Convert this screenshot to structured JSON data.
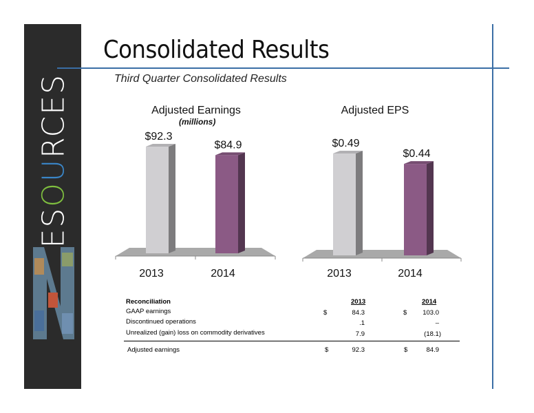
{
  "slide": {
    "title": "Consolidated Results",
    "subtitle": "Third Quarter Consolidated Results",
    "brand_text": "RESOURCES"
  },
  "colors": {
    "bar_2013": "#d0cfd2",
    "bar_2014": "#8b5a85",
    "accent_line": "#3a6ea5",
    "sidebar": "#2b2b2b"
  },
  "chart_data": [
    {
      "type": "bar",
      "title": "Adjusted Earnings",
      "subtitle": "(millions)",
      "categories": [
        "2013",
        "2014"
      ],
      "values": [
        92.3,
        84.9
      ],
      "data_labels": [
        "$92.3",
        "$84.9"
      ],
      "colors": [
        "#d0cfd2",
        "#8b5a85"
      ],
      "grid": false,
      "legend": "none"
    },
    {
      "type": "bar",
      "title": "Adjusted EPS",
      "subtitle": "",
      "categories": [
        "2013",
        "2014"
      ],
      "values": [
        0.49,
        0.44
      ],
      "data_labels": [
        "$0.49",
        "$0.44"
      ],
      "colors": [
        "#d0cfd2",
        "#8b5a85"
      ],
      "grid": false,
      "legend": "none"
    }
  ],
  "reconciliation": {
    "header": "Reconciliation",
    "col_2013": "2013",
    "col_2014": "2014",
    "rows": [
      {
        "label": "GAAP earnings",
        "cur1": "$",
        "v2013": "84.3",
        "cur2": "$",
        "v2014": "103.0"
      },
      {
        "label": "Discontinued operations",
        "cur1": "",
        "v2013": ".1",
        "cur2": "",
        "v2014": "–"
      },
      {
        "label": "Unrealized (gain) loss on commodity derivatives",
        "cur1": "",
        "v2013": "7.9",
        "cur2": "",
        "v2014": "(18.1)"
      }
    ],
    "total": {
      "label": "Adjusted earnings",
      "cur1": "$",
      "v2013": "92.3",
      "cur2": "$",
      "v2014": "84.9"
    }
  }
}
